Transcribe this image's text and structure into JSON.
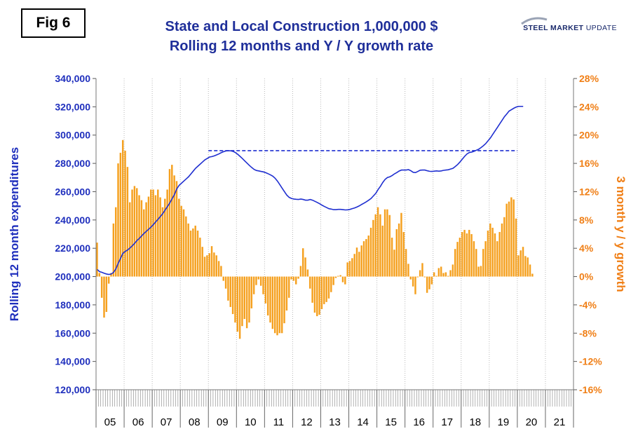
{
  "fig_label": "Fig 6",
  "brand": {
    "part1": "STEEL MARKET",
    "part2": "UPDATE"
  },
  "chart_data": {
    "type": "bar+line",
    "title": "State and Local Construction 1,000,000 $",
    "subtitle": "Rolling 12 months and Y / Y growth rate",
    "ylabel_left": "Rolling 12 month expenditures",
    "ylabel_right": "3 month y / y growth",
    "ylim_left": [
      120000,
      340000
    ],
    "ylim_right": [
      -16,
      28
    ],
    "yticks_left": [
      "120,000",
      "140,000",
      "160,000",
      "180,000",
      "200,000",
      "220,000",
      "240,000",
      "260,000",
      "280,000",
      "300,000",
      "320,000",
      "340,000"
    ],
    "yticks_right": [
      "-16%",
      "-12%",
      "-8%",
      "-4%",
      "0%",
      "4%",
      "8%",
      "12%",
      "16%",
      "20%",
      "24%",
      "28%"
    ],
    "x_years": [
      "05",
      "06",
      "07",
      "08",
      "09",
      "10",
      "11",
      "12",
      "13",
      "14",
      "15",
      "16",
      "17",
      "18",
      "19",
      "20",
      "21"
    ],
    "first_month": "2005-01",
    "growth_pct": [
      4.8,
      0.5,
      -3,
      -5.8,
      -5,
      -1,
      0.5,
      7.5,
      9.8,
      16,
      17.5,
      19.3,
      17.8,
      15.5,
      10.5,
      12.3,
      12.8,
      12.5,
      11.5,
      10.8,
      9.5,
      10.5,
      11.3,
      12.3,
      12.3,
      11.5,
      12.3,
      11.2,
      9.8,
      11,
      12.3,
      15.2,
      15.8,
      14.3,
      13.5,
      11,
      10,
      9.5,
      8.5,
      7.5,
      6.5,
      6.8,
      7.2,
      6.5,
      5.5,
      4.2,
      2.8,
      3,
      3.3,
      4.3,
      3.4,
      3,
      2.2,
      1.5,
      -0.6,
      -1.7,
      -3.4,
      -4.3,
      -5.3,
      -6.5,
      -7.8,
      -8.8,
      -7,
      -6,
      -7.3,
      -6.5,
      -4.5,
      -2.5,
      -1.2,
      -0.4,
      -1.3,
      -2.5,
      -3.8,
      -5.5,
      -6.5,
      -7.4,
      -8,
      -8.3,
      -8,
      -8,
      -6.6,
      -4.8,
      -3,
      -0.4,
      -0.6,
      -1.1,
      -0.3,
      1.5,
      4,
      2.7,
      1,
      -1.7,
      -3.7,
      -5.1,
      -5.6,
      -5.4,
      -4.6,
      -3.9,
      -3.6,
      -3.1,
      -2.2,
      -1.2,
      -0.2,
      0.1,
      0.2,
      -0.8,
      -1.1,
      2,
      2.2,
      2.6,
      3.2,
      4.1,
      3.5,
      4.4,
      5,
      5.3,
      5.8,
      6.9,
      8,
      8.8,
      9.8,
      8.8,
      7.2,
      9.5,
      9.5,
      8.7,
      5.5,
      3.8,
      6.7,
      7.5,
      9,
      6.3,
      3.9,
      1.8,
      -0.4,
      -1.4,
      -2.5,
      -0.1,
      0.9,
      1.9,
      -0.1,
      -2.3,
      -1.8,
      -1.1,
      0.6,
      0.1,
      1.2,
      1.4,
      0.5,
      0.6,
      0.1,
      0.9,
      1.7,
      3.9,
      4.9,
      5.5,
      6.3,
      6.6,
      6.1,
      6.6,
      6,
      5,
      3.9,
      1.4,
      1.5,
      3.9,
      5,
      6.5,
      7.5,
      6.9,
      6.1,
      5,
      6.3,
      7.5,
      8.4,
      10.3,
      10.6,
      11.2,
      10.9,
      8.2,
      3,
      3.7,
      4.2,
      2.9,
      2.7,
      1.7,
      0.4
    ],
    "rolling_12m": [
      205000,
      203500,
      203000,
      202300,
      201800,
      201500,
      201800,
      203000,
      205500,
      209500,
      213000,
      216500,
      217800,
      218800,
      220200,
      221800,
      223500,
      225500,
      227000,
      228800,
      230500,
      232000,
      233500,
      235000,
      236800,
      238700,
      240500,
      242500,
      244500,
      247000,
      249500,
      252000,
      255000,
      258000,
      262000,
      264500,
      266000,
      267500,
      269000,
      270500,
      272500,
      274500,
      276500,
      278000,
      279500,
      281000,
      282500,
      283500,
      284500,
      284800,
      285300,
      286000,
      286700,
      287600,
      288300,
      288800,
      289000,
      288900,
      288500,
      287700,
      286500,
      285000,
      283500,
      281800,
      280200,
      278600,
      277100,
      275800,
      275000,
      274700,
      274300,
      274000,
      273400,
      272700,
      271900,
      271000,
      269500,
      267500,
      265000,
      262500,
      260000,
      257600,
      256000,
      255200,
      254800,
      254600,
      254500,
      254800,
      254500,
      254000,
      254000,
      254500,
      254000,
      253200,
      252400,
      251500,
      250500,
      249600,
      248800,
      248000,
      247700,
      247300,
      247300,
      247500,
      247500,
      247300,
      247100,
      247200,
      247500,
      248000,
      248500,
      249200,
      250000,
      251000,
      251900,
      252900,
      254000,
      255200,
      257000,
      258800,
      261500,
      263800,
      266500,
      268700,
      270000,
      270500,
      271400,
      272600,
      273500,
      274600,
      275300,
      275300,
      275300,
      275600,
      274800,
      273700,
      273500,
      274300,
      275200,
      275300,
      275300,
      274800,
      274400,
      274300,
      274500,
      274700,
      274500,
      274700,
      275100,
      275300,
      275500,
      276000,
      276500,
      277800,
      279200,
      281000,
      283000,
      285000,
      286700,
      287700,
      288000,
      288500,
      289300,
      290000,
      291200,
      292500,
      294000,
      296000,
      298000,
      300500,
      303000,
      305500,
      308000,
      310500,
      313000,
      315000,
      317000,
      318000,
      319000,
      319800,
      320300,
      320300,
      320300
    ],
    "reference_line": {
      "value": 289000,
      "from": "2009-01",
      "to": "2019-12",
      "style": "dashed"
    }
  },
  "colors": {
    "title": "#1f2f9a",
    "left_axis": "#1f2fbd",
    "right_axis": "#f07f16",
    "bar": "#f5a01e",
    "line": "#1f2fd0",
    "grid": "#b8b8b8"
  }
}
